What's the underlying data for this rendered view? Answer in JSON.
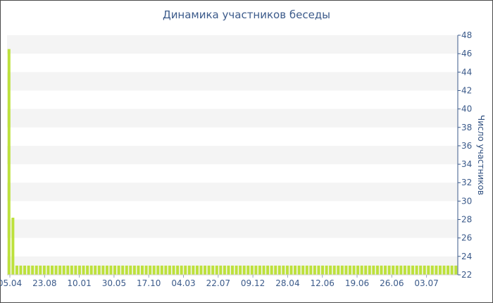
{
  "chart_data": {
    "type": "bar",
    "title": "Динамика участников беседы",
    "xlabel": "",
    "ylabel": "Число участников",
    "ylim": [
      22,
      48
    ],
    "y_ticks": [
      22,
      24,
      26,
      28,
      30,
      32,
      34,
      36,
      38,
      40,
      42,
      44,
      46,
      48
    ],
    "y_axis_position": "right",
    "x_tick_labels": [
      "05.04",
      "23.08",
      "10.01",
      "30.05",
      "17.10",
      "04.03",
      "22.07",
      "09.12",
      "28.04",
      "12.06",
      "19.06",
      "26.06",
      "03.07"
    ],
    "grid": "alternating horizontal bands",
    "colors": {
      "bar": "#bde13c",
      "band": "#f4f4f4",
      "axis_text": "#3b5a8a"
    },
    "values": [
      46.5,
      28.2,
      23,
      23,
      23,
      23,
      23,
      23,
      23,
      23,
      23,
      23,
      23,
      23,
      23,
      23,
      23,
      23,
      23,
      23,
      23,
      23,
      23,
      23,
      23,
      23,
      23,
      23,
      23,
      23,
      23,
      23,
      23,
      23,
      23,
      23,
      23,
      23,
      23,
      23,
      23,
      23,
      23,
      23,
      23,
      23,
      23,
      23,
      23,
      23,
      23,
      23,
      23,
      23,
      23,
      23,
      23,
      23,
      23,
      23,
      23,
      23,
      23,
      23,
      23,
      23,
      23,
      23,
      23,
      23,
      23,
      23,
      23,
      23,
      23,
      23,
      23,
      23,
      23,
      23,
      23,
      23,
      23,
      23,
      23,
      23,
      23,
      23,
      23,
      23,
      23,
      23,
      23,
      23,
      23,
      23,
      23,
      23,
      23,
      23,
      23,
      23,
      23,
      23,
      23,
      23,
      23,
      23,
      23,
      23,
      23,
      23,
      23,
      23,
      23
    ]
  }
}
